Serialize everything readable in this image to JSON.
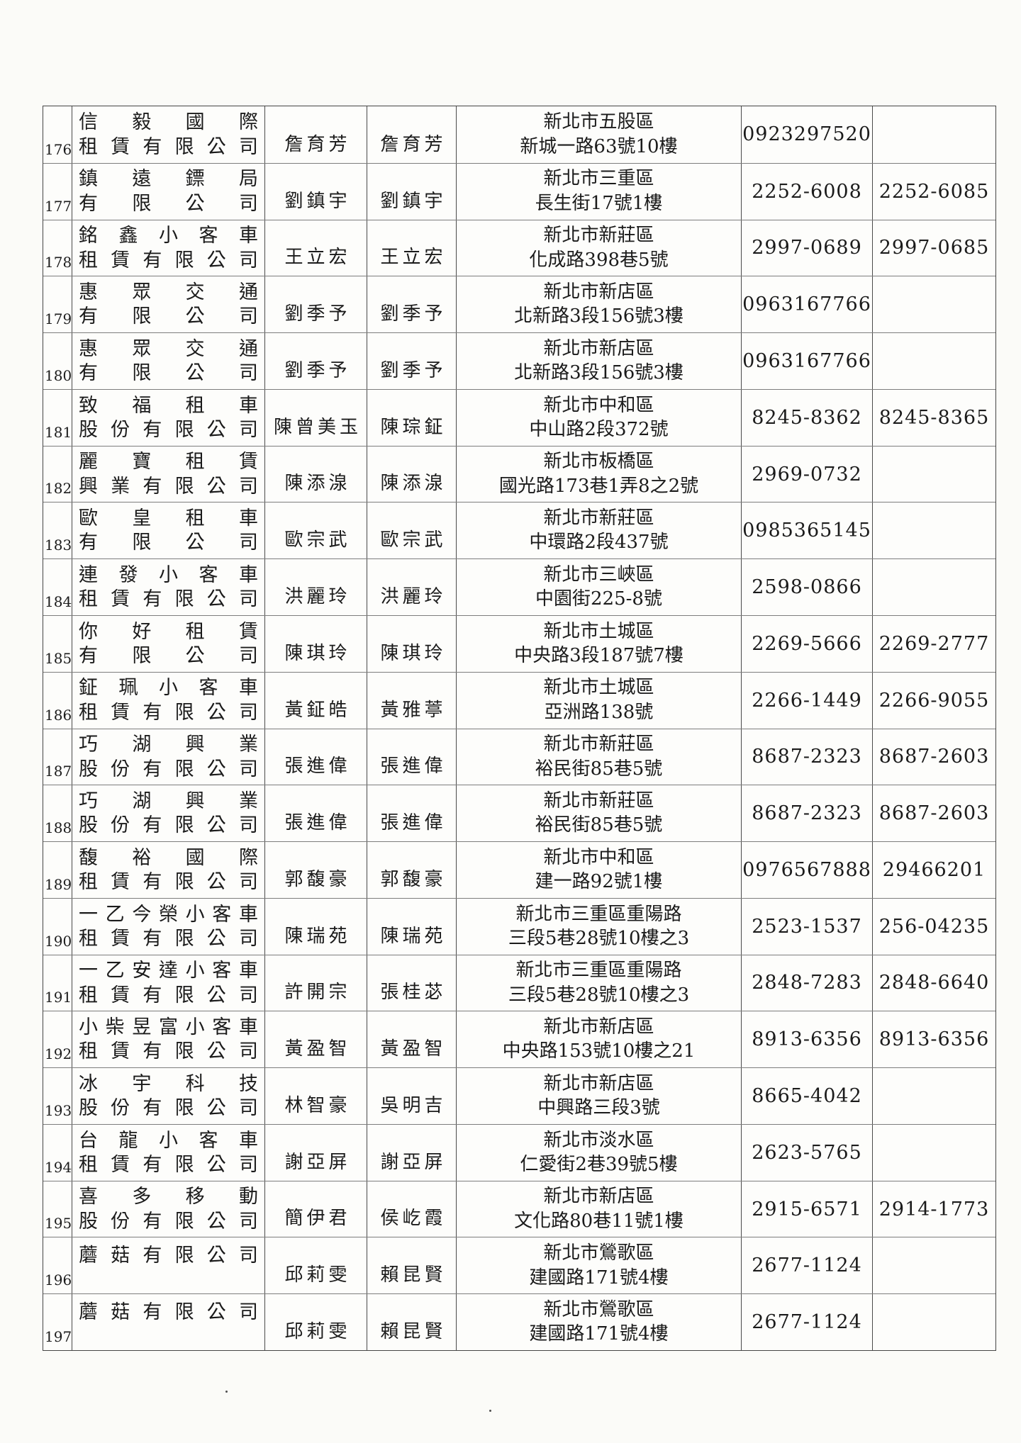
{
  "colors": {
    "paper": "#fdfdfb",
    "ink": "#1b1b1b",
    "grid_line_vertical": "#4a4a4a",
    "grid_line_horizontal": "#7d7d7d"
  },
  "rows": [
    {
      "no": "176",
      "company": [
        "信毅國際",
        "租賃有限公司"
      ],
      "rep": "詹育芳",
      "contact": "詹育芳",
      "address": [
        "新北市五股區",
        "新城一路63號10樓"
      ],
      "phone": "0923297520",
      "fax": ""
    },
    {
      "no": "177",
      "company": [
        "鎮遠鏢局",
        "有限公司"
      ],
      "rep": "劉鎮宇",
      "contact": "劉鎮宇",
      "address": [
        "新北市三重區",
        "長生街17號1樓"
      ],
      "phone": "2252-6008",
      "fax": "2252-6085"
    },
    {
      "no": "178",
      "company": [
        "銘鑫小客車",
        "租賃有限公司"
      ],
      "rep": "王立宏",
      "contact": "王立宏",
      "address": [
        "新北市新莊區",
        "化成路398巷5號"
      ],
      "phone": "2997-0689",
      "fax": "2997-0685"
    },
    {
      "no": "179",
      "company": [
        "惠眾交通",
        "有限公司"
      ],
      "rep": "劉季予",
      "contact": "劉季予",
      "address": [
        "新北市新店區",
        "北新路3段156號3樓"
      ],
      "phone": "0963167766",
      "fax": ""
    },
    {
      "no": "180",
      "company": [
        "惠眾交通",
        "有限公司"
      ],
      "rep": "劉季予",
      "contact": "劉季予",
      "address": [
        "新北市新店區",
        "北新路3段156號3樓"
      ],
      "phone": "0963167766",
      "fax": ""
    },
    {
      "no": "181",
      "company": [
        "致福租車",
        "股份有限公司"
      ],
      "rep": "陳曾美玉",
      "contact": "陳琮鉦",
      "address": [
        "新北市中和區",
        "中山路2段372號"
      ],
      "phone": "8245-8362",
      "fax": "8245-8365"
    },
    {
      "no": "182",
      "company": [
        "麗寶租賃",
        "興業有限公司"
      ],
      "rep": "陳添湶",
      "contact": "陳添湶",
      "address": [
        "新北市板橋區",
        "國光路173巷1弄8之2號"
      ],
      "phone": "2969-0732",
      "fax": ""
    },
    {
      "no": "183",
      "company": [
        "歐皇租車",
        "有限公司"
      ],
      "rep": "歐宗武",
      "contact": "歐宗武",
      "address": [
        "新北市新莊區",
        "中環路2段437號"
      ],
      "phone": "0985365145",
      "fax": ""
    },
    {
      "no": "184",
      "company": [
        "連發小客車",
        "租賃有限公司"
      ],
      "rep": "洪麗玲",
      "contact": "洪麗玲",
      "address": [
        "新北市三峽區",
        "中園街225-8號"
      ],
      "phone": "2598-0866",
      "fax": ""
    },
    {
      "no": "185",
      "company": [
        "你好租賃",
        "有限公司"
      ],
      "rep": "陳琪玲",
      "contact": "陳琪玲",
      "address": [
        "新北市土城區",
        "中央路3段187號7樓"
      ],
      "phone": "2269-5666",
      "fax": "2269-2777"
    },
    {
      "no": "186",
      "company": [
        "鉦珮小客車",
        "租賃有限公司"
      ],
      "rep": "黃鉦皓",
      "contact": "黃雅葶",
      "address": [
        "新北市土城區",
        "亞洲路138號"
      ],
      "phone": "2266-1449",
      "fax": "2266-9055"
    },
    {
      "no": "187",
      "company": [
        "巧湖興業",
        "股份有限公司"
      ],
      "rep": "張進偉",
      "contact": "張進偉",
      "address": [
        "新北市新莊區",
        "裕民街85巷5號"
      ],
      "phone": "8687-2323",
      "fax": "8687-2603"
    },
    {
      "no": "188",
      "company": [
        "巧湖興業",
        "股份有限公司"
      ],
      "rep": "張進偉",
      "contact": "張進偉",
      "address": [
        "新北市新莊區",
        "裕民街85巷5號"
      ],
      "phone": "8687-2323",
      "fax": "8687-2603"
    },
    {
      "no": "189",
      "company": [
        "馥裕國際",
        "租賃有限公司"
      ],
      "rep": "郭馥豪",
      "contact": "郭馥豪",
      "address": [
        "新北市中和區",
        "建一路92號1樓"
      ],
      "phone": "0976567888",
      "fax": "29466201"
    },
    {
      "no": "190",
      "company": [
        "一乙今榮小客車",
        "租賃有限公司"
      ],
      "rep": "陳瑞苑",
      "contact": "陳瑞苑",
      "address": [
        "新北市三重區重陽路",
        "三段5巷28號10樓之3"
      ],
      "phone": "2523-1537",
      "fax": "256-04235"
    },
    {
      "no": "191",
      "company": [
        "一乙安達小客車",
        "租賃有限公司"
      ],
      "rep": "許開宗",
      "contact": "張桂苾",
      "address": [
        "新北市三重區重陽路",
        "三段5巷28號10樓之3"
      ],
      "phone": "2848-7283",
      "fax": "2848-6640"
    },
    {
      "no": "192",
      "company": [
        "小柴昱富小客車",
        "租賃有限公司"
      ],
      "rep": "黃盈智",
      "contact": "黃盈智",
      "address": [
        "新北市新店區",
        "中央路153號10樓之21"
      ],
      "phone": "8913-6356",
      "fax": "8913-6356"
    },
    {
      "no": "193",
      "company": [
        "冰宇科技",
        "股份有限公司"
      ],
      "rep": "林智豪",
      "contact": "吳明吉",
      "address": [
        "新北市新店區",
        "中興路三段3號"
      ],
      "phone": "8665-4042",
      "fax": ""
    },
    {
      "no": "194",
      "company": [
        "台龍小客車",
        "租賃有限公司"
      ],
      "rep": "謝亞屏",
      "contact": "謝亞屏",
      "address": [
        "新北市淡水區",
        "仁愛街2巷39號5樓"
      ],
      "phone": "2623-5765",
      "fax": ""
    },
    {
      "no": "195",
      "company": [
        "喜多移動",
        "股份有限公司"
      ],
      "rep": "簡伊君",
      "contact": "侯屹霞",
      "address": [
        "新北市新店區",
        "文化路80巷11號1樓"
      ],
      "phone": "2915-6571",
      "fax": "2914-1773"
    },
    {
      "no": "196",
      "company": [
        "蘑菇有限公司"
      ],
      "rep": "邱莉雯",
      "contact": "賴昆賢",
      "address": [
        "新北市鶯歌區",
        "建國路171號4樓"
      ],
      "phone": "2677-1124",
      "fax": ""
    },
    {
      "no": "197",
      "company": [
        "蘑菇有限公司"
      ],
      "rep": "邱莉雯",
      "contact": "賴昆賢",
      "address": [
        "新北市鶯歌區",
        "建國路171號4樓"
      ],
      "phone": "2677-1124",
      "fax": ""
    }
  ]
}
